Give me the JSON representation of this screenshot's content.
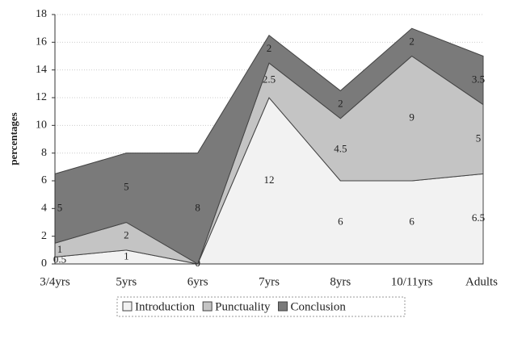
{
  "chart_data": {
    "type": "stacked_area",
    "y_label": "percentages",
    "categories": [
      "3/4yrs",
      "5yrs",
      "6yrs",
      "7yrs",
      "8yrs",
      "10/11yrs",
      "Adults"
    ],
    "series": [
      {
        "name": "Introduction",
        "color": "#f2f2f2",
        "values": [
          0.5,
          1,
          0,
          12,
          6,
          6,
          6.5
        ]
      },
      {
        "name": "Punctuality",
        "color": "#c4c4c4",
        "values": [
          1,
          2,
          0,
          2.5,
          4.5,
          9,
          5
        ]
      },
      {
        "name": "Conclusion",
        "color": "#7a7a7a",
        "values": [
          5,
          5,
          8,
          2,
          2,
          2,
          3.5
        ]
      }
    ],
    "ylim": [
      0,
      18
    ],
    "yticks": [
      0,
      2,
      4,
      6,
      8,
      10,
      12,
      14,
      16,
      18
    ],
    "grid": true
  }
}
